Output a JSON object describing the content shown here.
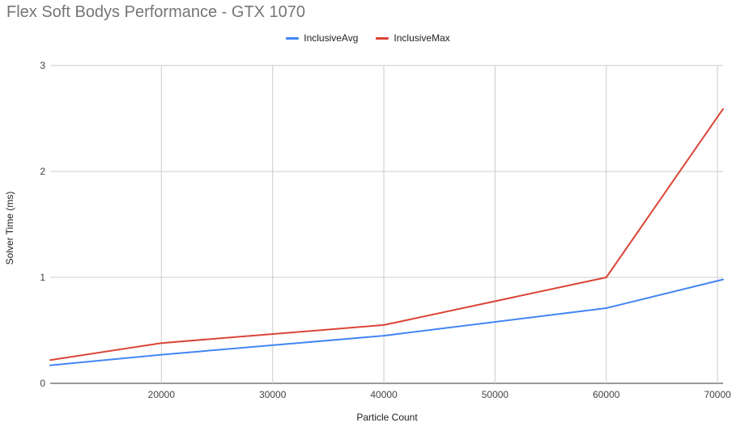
{
  "chart_data": {
    "type": "line",
    "title": "Flex Soft Bodys Performance - GTX 1070",
    "xlabel": "Particle Count",
    "ylabel": "Solver Time (ms)",
    "xlim": [
      10000,
      70500
    ],
    "ylim": [
      0,
      3
    ],
    "x_ticks": [
      20000,
      30000,
      40000,
      50000,
      60000,
      70000
    ],
    "y_ticks": [
      0,
      1,
      2,
      3
    ],
    "grid": true,
    "legend_position": "top-center",
    "x": [
      10000,
      20000,
      40000,
      60000,
      70500
    ],
    "series": [
      {
        "name": "InclusiveAvg",
        "color": "#4285f4",
        "values": [
          0.17,
          0.27,
          0.45,
          0.71,
          0.98
        ]
      },
      {
        "name": "InclusiveMax",
        "color": "#db4437",
        "values": [
          0.22,
          0.38,
          0.55,
          1.0,
          2.59
        ]
      }
    ]
  }
}
